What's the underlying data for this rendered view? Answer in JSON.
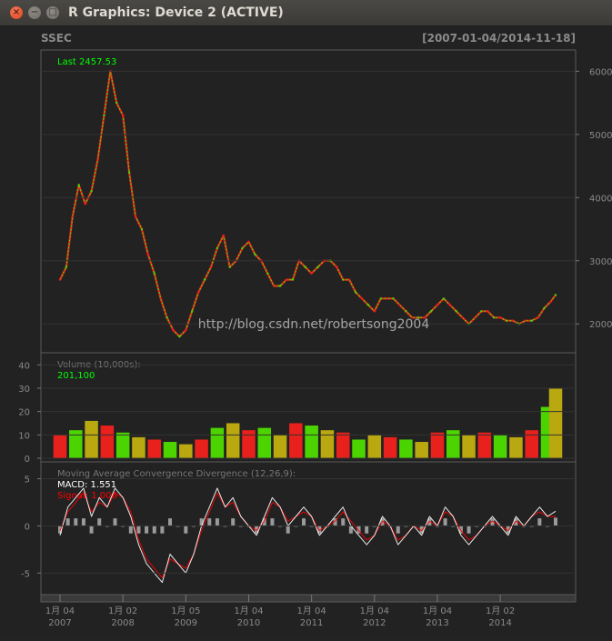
{
  "window": {
    "title": "R Graphics: Device 2 (ACTIVE)",
    "close_glyph": "×",
    "minimize_glyph": "−",
    "maximize_glyph": "□"
  },
  "chart_data": [
    {
      "type": "line",
      "panel": "price",
      "title": "SSEC",
      "date_range": "[2007-01-04/2014-11-18]",
      "last_label": "Last 2457.53",
      "y_ticks": [
        2000,
        3000,
        4000,
        5000,
        6000
      ],
      "ylim": [
        1600,
        6250
      ],
      "grid": true,
      "x_ticks": [
        {
          "label": "1月 04",
          "year": "2007"
        },
        {
          "label": "1月 02",
          "year": "2008"
        },
        {
          "label": "1月 05",
          "year": "2009"
        },
        {
          "label": "1月 04",
          "year": "2010"
        },
        {
          "label": "1月 04",
          "year": "2011"
        },
        {
          "label": "1月 04",
          "year": "2012"
        },
        {
          "label": "1月 04",
          "year": "2013"
        },
        {
          "label": "1月 02",
          "year": "2014"
        }
      ],
      "x": [
        2007.0,
        2007.1,
        2007.2,
        2007.3,
        2007.4,
        2007.5,
        2007.6,
        2007.7,
        2007.8,
        2007.9,
        2008.0,
        2008.1,
        2008.2,
        2008.3,
        2008.4,
        2008.5,
        2008.6,
        2008.7,
        2008.8,
        2008.9,
        2009.0,
        2009.1,
        2009.2,
        2009.3,
        2009.4,
        2009.5,
        2009.6,
        2009.7,
        2009.8,
        2009.9,
        2010.0,
        2010.1,
        2010.2,
        2010.3,
        2010.4,
        2010.5,
        2010.6,
        2010.7,
        2010.8,
        2010.9,
        2011.0,
        2011.1,
        2011.2,
        2011.3,
        2011.4,
        2011.5,
        2011.6,
        2011.7,
        2011.8,
        2011.9,
        2012.0,
        2012.1,
        2012.2,
        2012.3,
        2012.4,
        2012.5,
        2012.6,
        2012.7,
        2012.8,
        2012.9,
        2013.0,
        2013.1,
        2013.2,
        2013.3,
        2013.4,
        2013.5,
        2013.6,
        2013.7,
        2013.8,
        2013.9,
        2014.0,
        2014.1,
        2014.2,
        2014.3,
        2014.4,
        2014.5,
        2014.6,
        2014.7,
        2014.8,
        2014.88
      ],
      "values": [
        2700,
        2900,
        3700,
        4200,
        3900,
        4100,
        4600,
        5300,
        6000,
        5500,
        5300,
        4400,
        3700,
        3500,
        3100,
        2800,
        2400,
        2100,
        1900,
        1800,
        1900,
        2200,
        2500,
        2700,
        2900,
        3200,
        3400,
        2900,
        3000,
        3200,
        3300,
        3100,
        3000,
        2800,
        2600,
        2600,
        2700,
        2700,
        3000,
        2900,
        2800,
        2900,
        3000,
        3000,
        2900,
        2700,
        2700,
        2500,
        2400,
        2300,
        2200,
        2400,
        2400,
        2400,
        2300,
        2200,
        2100,
        2100,
        2100,
        2200,
        2300,
        2400,
        2300,
        2200,
        2100,
        2000,
        2100,
        2200,
        2200,
        2100,
        2100,
        2050,
        2050,
        2000,
        2050,
        2050,
        2100,
        2250,
        2350,
        2457.53
      ]
    },
    {
      "type": "bar",
      "panel": "volume",
      "title": "Volume (10,000s):",
      "last_label": "201,100",
      "y_ticks": [
        0,
        10,
        20,
        30,
        40
      ],
      "ylim": [
        0,
        44
      ],
      "grid": true,
      "x": [
        2007.0,
        2007.25,
        2007.5,
        2007.75,
        2008.0,
        2008.25,
        2008.5,
        2008.75,
        2009.0,
        2009.25,
        2009.5,
        2009.75,
        2010.0,
        2010.25,
        2010.5,
        2010.75,
        2011.0,
        2011.25,
        2011.5,
        2011.75,
        2012.0,
        2012.25,
        2012.5,
        2012.75,
        2013.0,
        2013.25,
        2013.5,
        2013.75,
        2014.0,
        2014.25,
        2014.5,
        2014.75,
        2014.88
      ],
      "values": [
        10,
        12,
        16,
        14,
        11,
        9,
        8,
        7,
        6,
        8,
        13,
        15,
        12,
        13,
        10,
        15,
        14,
        12,
        11,
        8,
        10,
        9,
        8,
        7,
        11,
        12,
        10,
        11,
        10,
        9,
        12,
        22,
        30
      ]
    },
    {
      "type": "line",
      "panel": "macd",
      "title": "Moving Average Convergence Divergence (12,26,9):",
      "macd_label": "MACD: 1.551",
      "signal_label": "Signal: 1.006",
      "y_ticks": [
        -5,
        0,
        5
      ],
      "ylim": [
        -7,
        6.5
      ],
      "grid": true,
      "x": [
        2007.0,
        2007.125,
        2007.25,
        2007.375,
        2007.5,
        2007.625,
        2007.75,
        2007.875,
        2008.0,
        2008.125,
        2008.25,
        2008.375,
        2008.5,
        2008.625,
        2008.75,
        2008.875,
        2009.0,
        2009.125,
        2009.25,
        2009.375,
        2009.5,
        2009.625,
        2009.75,
        2009.875,
        2010.0,
        2010.125,
        2010.25,
        2010.375,
        2010.5,
        2010.625,
        2010.75,
        2010.875,
        2011.0,
        2011.125,
        2011.25,
        2011.375,
        2011.5,
        2011.625,
        2011.75,
        2011.875,
        2012.0,
        2012.125,
        2012.25,
        2012.375,
        2012.5,
        2012.625,
        2012.75,
        2012.875,
        2013.0,
        2013.125,
        2013.25,
        2013.375,
        2013.5,
        2013.625,
        2013.75,
        2013.875,
        2014.0,
        2014.125,
        2014.25,
        2014.375,
        2014.5,
        2014.625,
        2014.75,
        2014.88
      ],
      "series": [
        {
          "name": "MACD",
          "color": "#ffffff",
          "values": [
            -1,
            2,
            3,
            4,
            1,
            3,
            2,
            4,
            3,
            1,
            -2,
            -4,
            -5,
            -6,
            -3,
            -4,
            -5,
            -3,
            0,
            2,
            4,
            2,
            3,
            1,
            0,
            -1,
            1,
            3,
            2,
            0,
            1,
            2,
            1,
            -1,
            0,
            1,
            2,
            0,
            -1,
            -2,
            -1,
            1,
            0,
            -2,
            -1,
            0,
            -1,
            1,
            0,
            2,
            1,
            -1,
            -2,
            -1,
            0,
            1,
            0,
            -1,
            1,
            0,
            1,
            2,
            1,
            1.551
          ]
        },
        {
          "name": "Signal",
          "color": "#ff0000",
          "values": [
            -0.5,
            1.5,
            2.5,
            3.5,
            1.5,
            2.5,
            2,
            3.5,
            3,
            1.5,
            -1.5,
            -3.5,
            -4.5,
            -5.5,
            -3.5,
            -4,
            -4.5,
            -3,
            -0.5,
            1.5,
            3.5,
            2,
            2.5,
            1,
            0,
            -0.5,
            0.5,
            2.5,
            2,
            0.5,
            1,
            1.5,
            1,
            -0.5,
            0,
            0.5,
            1.5,
            0.5,
            -0.5,
            -1.5,
            -1,
            0.5,
            0,
            -1.5,
            -1,
            0,
            -0.5,
            0.5,
            0,
            1.5,
            1,
            -0.5,
            -1.5,
            -1,
            0,
            0.5,
            0,
            -0.5,
            0.5,
            0,
            1,
            1.5,
            1,
            1.006
          ]
        }
      ]
    }
  ],
  "watermark": "http://blog.csdn.net/robertsong2004"
}
